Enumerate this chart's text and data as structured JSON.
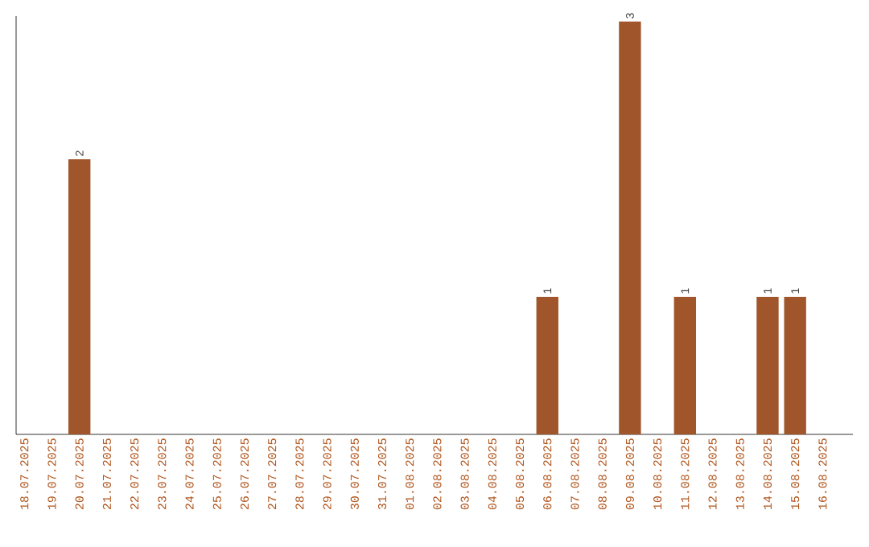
{
  "chart_data": {
    "type": "bar",
    "categories": [
      "18.07.2025",
      "19.07.2025",
      "20.07.2025",
      "21.07.2025",
      "22.07.2025",
      "23.07.2025",
      "24.07.2025",
      "25.07.2025",
      "26.07.2025",
      "27.07.2025",
      "28.07.2025",
      "29.07.2025",
      "30.07.2025",
      "31.07.2025",
      "01.08.2025",
      "02.08.2025",
      "03.08.2025",
      "04.08.2025",
      "05.08.2025",
      "06.08.2025",
      "07.08.2025",
      "08.08.2025",
      "09.08.2025",
      "10.08.2025",
      "11.08.2025",
      "12.08.2025",
      "13.08.2025",
      "14.08.2025",
      "15.08.2025",
      "16.08.2025"
    ],
    "values": [
      0,
      0,
      2,
      0,
      0,
      0,
      0,
      0,
      0,
      0,
      0,
      0,
      0,
      0,
      0,
      0,
      0,
      0,
      0,
      1,
      0,
      0,
      3,
      0,
      1,
      0,
      0,
      1,
      1,
      0
    ],
    "value_labels": [
      null,
      null,
      "2",
      null,
      null,
      null,
      null,
      null,
      null,
      null,
      null,
      null,
      null,
      null,
      null,
      null,
      null,
      null,
      null,
      "1",
      null,
      null,
      "3",
      null,
      "1",
      null,
      null,
      "1",
      "1",
      null
    ],
    "color": "#a0562a",
    "ylim": [
      0,
      3.04
    ],
    "tick_labels": "x"
  }
}
